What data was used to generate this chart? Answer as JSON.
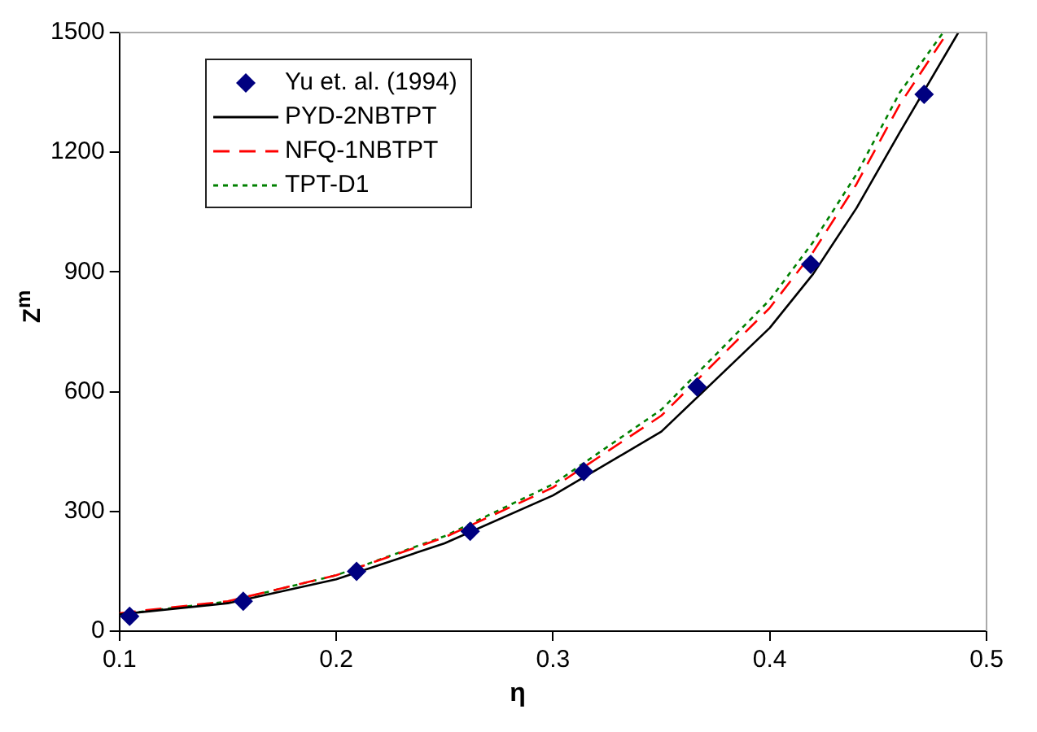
{
  "chart_data": {
    "type": "line",
    "xlabel": "η",
    "ylabel": "Z$^{m}$",
    "xlim": [
      0.1,
      0.5
    ],
    "xticks": [
      0.1,
      0.2,
      0.3,
      0.4,
      0.5
    ],
    "ylim": [
      0,
      1500
    ],
    "yticks": [
      0,
      300,
      600,
      900,
      1200,
      1500
    ],
    "grid": false,
    "legend": "top left",
    "series": [
      {
        "name": "Yu et. al. (1994)",
        "type": "scatter",
        "marker": "diamond",
        "color": "#000080",
        "x": [
          0.1047,
          0.1571,
          0.2094,
          0.2618,
          0.3142,
          0.3665,
          0.4189,
          0.4712
        ],
        "values": [
          37,
          75,
          150,
          250,
          400,
          612,
          919,
          1345
        ]
      },
      {
        "name": "PYD-2NBTPT",
        "type": "line",
        "marker": "none",
        "line_style": "solid",
        "color": "#000000",
        "x": [
          0.1,
          0.15,
          0.2,
          0.25,
          0.3,
          0.35,
          0.4,
          0.42,
          0.44,
          0.46,
          0.487
        ],
        "values": [
          42,
          70,
          130,
          220,
          340,
          500,
          760,
          895,
          1060,
          1250,
          1500
        ]
      },
      {
        "name": "NFQ-1NBTPT",
        "type": "line",
        "marker": "none",
        "line_style": "dashed",
        "color": "#ff0000",
        "x": [
          0.1,
          0.15,
          0.2,
          0.25,
          0.3,
          0.35,
          0.4,
          0.42,
          0.44,
          0.46,
          0.482
        ],
        "values": [
          45,
          75,
          140,
          235,
          360,
          540,
          810,
          950,
          1120,
          1320,
          1500
        ]
      },
      {
        "name": "TPT-D1",
        "type": "line",
        "marker": "none",
        "line_style": "dotted",
        "color": "#008000",
        "x": [
          0.1,
          0.15,
          0.2,
          0.25,
          0.3,
          0.35,
          0.4,
          0.42,
          0.44,
          0.46,
          0.48
        ],
        "values": [
          42,
          74,
          140,
          238,
          368,
          555,
          830,
          975,
          1145,
          1350,
          1500
        ]
      }
    ]
  }
}
